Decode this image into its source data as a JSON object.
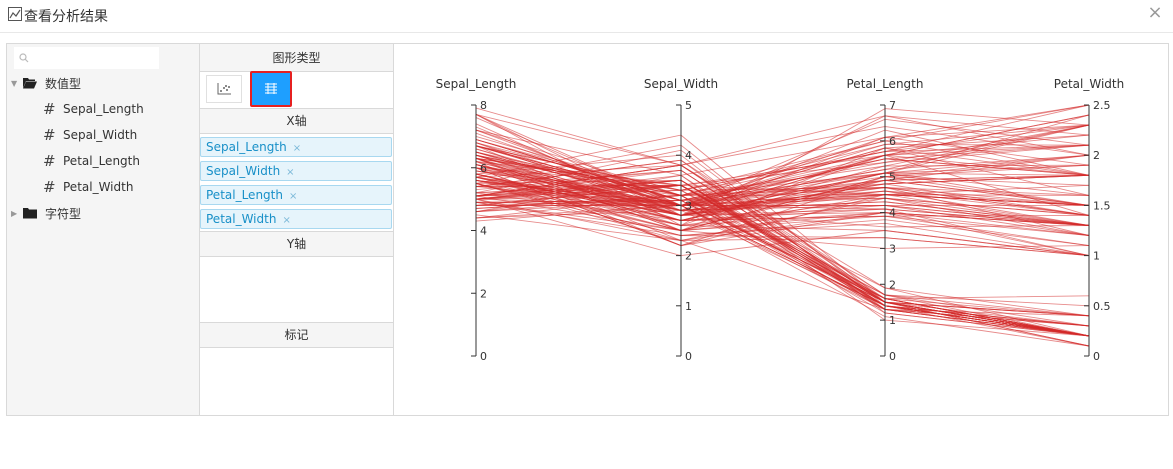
{
  "window": {
    "title": "查看分析结果",
    "close_label": "×"
  },
  "field_tree": {
    "search": {
      "placeholder": ""
    },
    "folders": [
      {
        "label": "数值型",
        "expanded": true,
        "fields": [
          "Sepal_Length",
          "Sepal_Width",
          "Petal_Length",
          "Petal_Width"
        ]
      },
      {
        "label": "字符型",
        "expanded": false,
        "fields": []
      }
    ]
  },
  "config": {
    "chart_type_header": "图形类型",
    "x_axis_header": "X轴",
    "y_axis_header": "Y轴",
    "marker_header": "标记",
    "x_axis_fields": [
      "Sepal_Length",
      "Sepal_Width",
      "Petal_Length",
      "Petal_Width"
    ],
    "remove_label": "×"
  },
  "chart_data": {
    "type": "parallel",
    "color": "#d42a2a",
    "axes": [
      {
        "name": "Sepal_Length",
        "range": [
          0,
          8
        ],
        "ticks": [
          0,
          2,
          4,
          6,
          8
        ]
      },
      {
        "name": "Sepal_Width",
        "range": [
          0,
          5
        ],
        "ticks": [
          0,
          1,
          2,
          3,
          4,
          5
        ]
      },
      {
        "name": "Petal_Length",
        "range": [
          0,
          7
        ],
        "ticks": [
          0,
          1,
          2,
          3,
          4,
          5,
          6,
          7
        ]
      },
      {
        "name": "Petal_Width",
        "range": [
          0,
          2.5
        ],
        "ticks": [
          0,
          0.5,
          1,
          1.5,
          2,
          2.5
        ]
      }
    ],
    "rows": [
      [
        5.1,
        3.5,
        1.4,
        0.2
      ],
      [
        4.9,
        3.0,
        1.4,
        0.2
      ],
      [
        4.7,
        3.2,
        1.3,
        0.2
      ],
      [
        4.6,
        3.1,
        1.5,
        0.2
      ],
      [
        5.0,
        3.6,
        1.4,
        0.2
      ],
      [
        5.4,
        3.9,
        1.7,
        0.4
      ],
      [
        4.6,
        3.4,
        1.4,
        0.3
      ],
      [
        5.0,
        3.4,
        1.5,
        0.2
      ],
      [
        4.4,
        2.9,
        1.4,
        0.2
      ],
      [
        4.9,
        3.1,
        1.5,
        0.1
      ],
      [
        5.4,
        3.7,
        1.5,
        0.2
      ],
      [
        4.8,
        3.4,
        1.6,
        0.2
      ],
      [
        4.8,
        3.0,
        1.4,
        0.1
      ],
      [
        4.3,
        3.0,
        1.1,
        0.1
      ],
      [
        5.8,
        4.0,
        1.2,
        0.2
      ],
      [
        5.7,
        4.4,
        1.5,
        0.4
      ],
      [
        5.4,
        3.9,
        1.3,
        0.4
      ],
      [
        5.1,
        3.5,
        1.4,
        0.3
      ],
      [
        5.7,
        3.8,
        1.7,
        0.3
      ],
      [
        5.1,
        3.8,
        1.5,
        0.3
      ],
      [
        5.4,
        3.4,
        1.7,
        0.2
      ],
      [
        5.1,
        3.7,
        1.5,
        0.4
      ],
      [
        4.6,
        3.6,
        1.0,
        0.2
      ],
      [
        5.1,
        3.3,
        1.7,
        0.5
      ],
      [
        4.8,
        3.4,
        1.9,
        0.2
      ],
      [
        5.0,
        3.0,
        1.6,
        0.2
      ],
      [
        5.0,
        3.4,
        1.6,
        0.4
      ],
      [
        5.2,
        3.5,
        1.5,
        0.2
      ],
      [
        5.2,
        3.4,
        1.4,
        0.2
      ],
      [
        4.7,
        3.2,
        1.6,
        0.2
      ],
      [
        4.8,
        3.1,
        1.6,
        0.2
      ],
      [
        5.4,
        3.4,
        1.5,
        0.4
      ],
      [
        5.2,
        4.1,
        1.5,
        0.1
      ],
      [
        5.5,
        4.2,
        1.4,
        0.2
      ],
      [
        4.9,
        3.1,
        1.5,
        0.2
      ],
      [
        5.0,
        3.2,
        1.2,
        0.2
      ],
      [
        5.5,
        3.5,
        1.3,
        0.2
      ],
      [
        4.4,
        3.0,
        1.3,
        0.2
      ],
      [
        5.1,
        3.4,
        1.5,
        0.2
      ],
      [
        5.0,
        3.5,
        1.3,
        0.3
      ],
      [
        4.5,
        2.3,
        1.3,
        0.3
      ],
      [
        4.4,
        3.2,
        1.3,
        0.2
      ],
      [
        5.0,
        3.5,
        1.6,
        0.6
      ],
      [
        5.1,
        3.8,
        1.9,
        0.4
      ],
      [
        4.8,
        3.0,
        1.4,
        0.3
      ],
      [
        5.1,
        3.8,
        1.6,
        0.2
      ],
      [
        4.6,
        3.2,
        1.4,
        0.2
      ],
      [
        5.3,
        3.7,
        1.5,
        0.2
      ],
      [
        5.0,
        3.3,
        1.4,
        0.2
      ],
      [
        7.0,
        3.2,
        4.7,
        1.4
      ],
      [
        6.4,
        3.2,
        4.5,
        1.5
      ],
      [
        6.9,
        3.1,
        4.9,
        1.5
      ],
      [
        5.5,
        2.3,
        4.0,
        1.3
      ],
      [
        6.5,
        2.8,
        4.6,
        1.5
      ],
      [
        5.7,
        2.8,
        4.5,
        1.3
      ],
      [
        6.3,
        3.3,
        4.7,
        1.6
      ],
      [
        4.9,
        2.4,
        3.3,
        1.0
      ],
      [
        6.6,
        2.9,
        4.6,
        1.3
      ],
      [
        5.2,
        2.7,
        3.9,
        1.4
      ],
      [
        5.0,
        2.0,
        3.5,
        1.0
      ],
      [
        5.9,
        3.0,
        4.2,
        1.5
      ],
      [
        6.0,
        2.2,
        4.0,
        1.0
      ],
      [
        6.1,
        2.9,
        4.7,
        1.4
      ],
      [
        5.6,
        2.9,
        3.6,
        1.3
      ],
      [
        6.7,
        3.1,
        4.4,
        1.4
      ],
      [
        5.6,
        3.0,
        4.5,
        1.5
      ],
      [
        5.8,
        2.7,
        4.1,
        1.0
      ],
      [
        6.2,
        2.2,
        4.5,
        1.5
      ],
      [
        5.6,
        2.5,
        3.9,
        1.1
      ],
      [
        5.9,
        3.2,
        4.8,
        1.8
      ],
      [
        6.1,
        2.8,
        4.0,
        1.3
      ],
      [
        6.3,
        2.5,
        4.9,
        1.5
      ],
      [
        6.1,
        2.8,
        4.7,
        1.2
      ],
      [
        6.4,
        2.9,
        4.3,
        1.3
      ],
      [
        6.6,
        3.0,
        4.4,
        1.4
      ],
      [
        6.8,
        2.8,
        4.8,
        1.4
      ],
      [
        6.7,
        3.0,
        5.0,
        1.7
      ],
      [
        6.0,
        2.9,
        4.5,
        1.5
      ],
      [
        5.7,
        2.6,
        3.5,
        1.0
      ],
      [
        5.5,
        2.4,
        3.8,
        1.1
      ],
      [
        5.5,
        2.4,
        3.7,
        1.0
      ],
      [
        5.8,
        2.7,
        3.9,
        1.2
      ],
      [
        6.0,
        2.7,
        5.1,
        1.6
      ],
      [
        5.4,
        3.0,
        4.5,
        1.5
      ],
      [
        6.0,
        3.4,
        4.5,
        1.6
      ],
      [
        6.7,
        3.1,
        4.7,
        1.5
      ],
      [
        6.3,
        2.3,
        4.4,
        1.3
      ],
      [
        5.6,
        3.0,
        4.1,
        1.3
      ],
      [
        5.5,
        2.5,
        4.0,
        1.3
      ],
      [
        5.5,
        2.6,
        4.4,
        1.2
      ],
      [
        6.1,
        3.0,
        4.6,
        1.4
      ],
      [
        5.8,
        2.6,
        4.0,
        1.2
      ],
      [
        5.0,
        2.3,
        3.3,
        1.0
      ],
      [
        5.6,
        2.7,
        4.2,
        1.3
      ],
      [
        5.7,
        3.0,
        4.2,
        1.2
      ],
      [
        5.7,
        2.9,
        4.2,
        1.3
      ],
      [
        6.2,
        2.9,
        4.3,
        1.3
      ],
      [
        5.1,
        2.5,
        3.0,
        1.1
      ],
      [
        5.7,
        2.8,
        4.1,
        1.3
      ],
      [
        6.3,
        3.3,
        6.0,
        2.5
      ],
      [
        5.8,
        2.7,
        5.1,
        1.9
      ],
      [
        7.1,
        3.0,
        5.9,
        2.1
      ],
      [
        6.3,
        2.9,
        5.6,
        1.8
      ],
      [
        6.5,
        3.0,
        5.8,
        2.2
      ],
      [
        7.6,
        3.0,
        6.6,
        2.1
      ],
      [
        4.9,
        2.5,
        4.5,
        1.7
      ],
      [
        7.3,
        2.9,
        6.3,
        1.8
      ],
      [
        6.7,
        2.5,
        5.8,
        1.8
      ],
      [
        7.2,
        3.6,
        6.1,
        2.5
      ],
      [
        6.5,
        3.2,
        5.1,
        2.0
      ],
      [
        6.4,
        2.7,
        5.3,
        1.9
      ],
      [
        6.8,
        3.0,
        5.5,
        2.1
      ],
      [
        5.7,
        2.5,
        5.0,
        2.0
      ],
      [
        5.8,
        2.8,
        5.1,
        2.4
      ],
      [
        6.4,
        3.2,
        5.3,
        2.3
      ],
      [
        6.5,
        3.0,
        5.5,
        1.8
      ],
      [
        7.7,
        3.8,
        6.7,
        2.2
      ],
      [
        7.7,
        2.6,
        6.9,
        2.3
      ],
      [
        6.0,
        2.2,
        5.0,
        1.5
      ],
      [
        6.9,
        3.2,
        5.7,
        2.3
      ],
      [
        5.6,
        2.8,
        4.9,
        2.0
      ],
      [
        7.7,
        2.8,
        6.7,
        2.0
      ],
      [
        6.3,
        2.7,
        4.9,
        1.8
      ],
      [
        6.7,
        3.3,
        5.7,
        2.1
      ],
      [
        7.2,
        3.2,
        6.0,
        1.8
      ],
      [
        6.2,
        2.8,
        4.8,
        1.8
      ],
      [
        6.1,
        3.0,
        4.9,
        1.8
      ],
      [
        6.4,
        2.8,
        5.6,
        2.1
      ],
      [
        7.2,
        3.0,
        5.8,
        1.6
      ],
      [
        7.4,
        2.8,
        6.1,
        1.9
      ],
      [
        7.9,
        3.8,
        6.4,
        2.0
      ],
      [
        6.4,
        2.8,
        5.6,
        2.2
      ],
      [
        6.3,
        2.8,
        5.1,
        1.5
      ],
      [
        6.1,
        2.6,
        5.6,
        1.4
      ],
      [
        7.7,
        3.0,
        6.1,
        2.3
      ],
      [
        6.3,
        3.4,
        5.6,
        2.4
      ],
      [
        6.4,
        3.1,
        5.5,
        1.8
      ],
      [
        6.0,
        3.0,
        4.8,
        1.8
      ],
      [
        6.9,
        3.1,
        5.4,
        2.1
      ],
      [
        6.7,
        3.1,
        5.6,
        2.4
      ],
      [
        6.9,
        3.1,
        5.1,
        2.3
      ],
      [
        6.8,
        3.2,
        5.9,
        2.3
      ],
      [
        6.7,
        3.3,
        5.7,
        2.5
      ],
      [
        6.7,
        3.0,
        5.2,
        2.3
      ],
      [
        6.3,
        2.5,
        5.0,
        1.9
      ],
      [
        6.5,
        3.0,
        5.2,
        2.0
      ],
      [
        6.2,
        3.4,
        5.4,
        2.3
      ],
      [
        5.9,
        3.0,
        5.1,
        1.8
      ]
    ]
  }
}
